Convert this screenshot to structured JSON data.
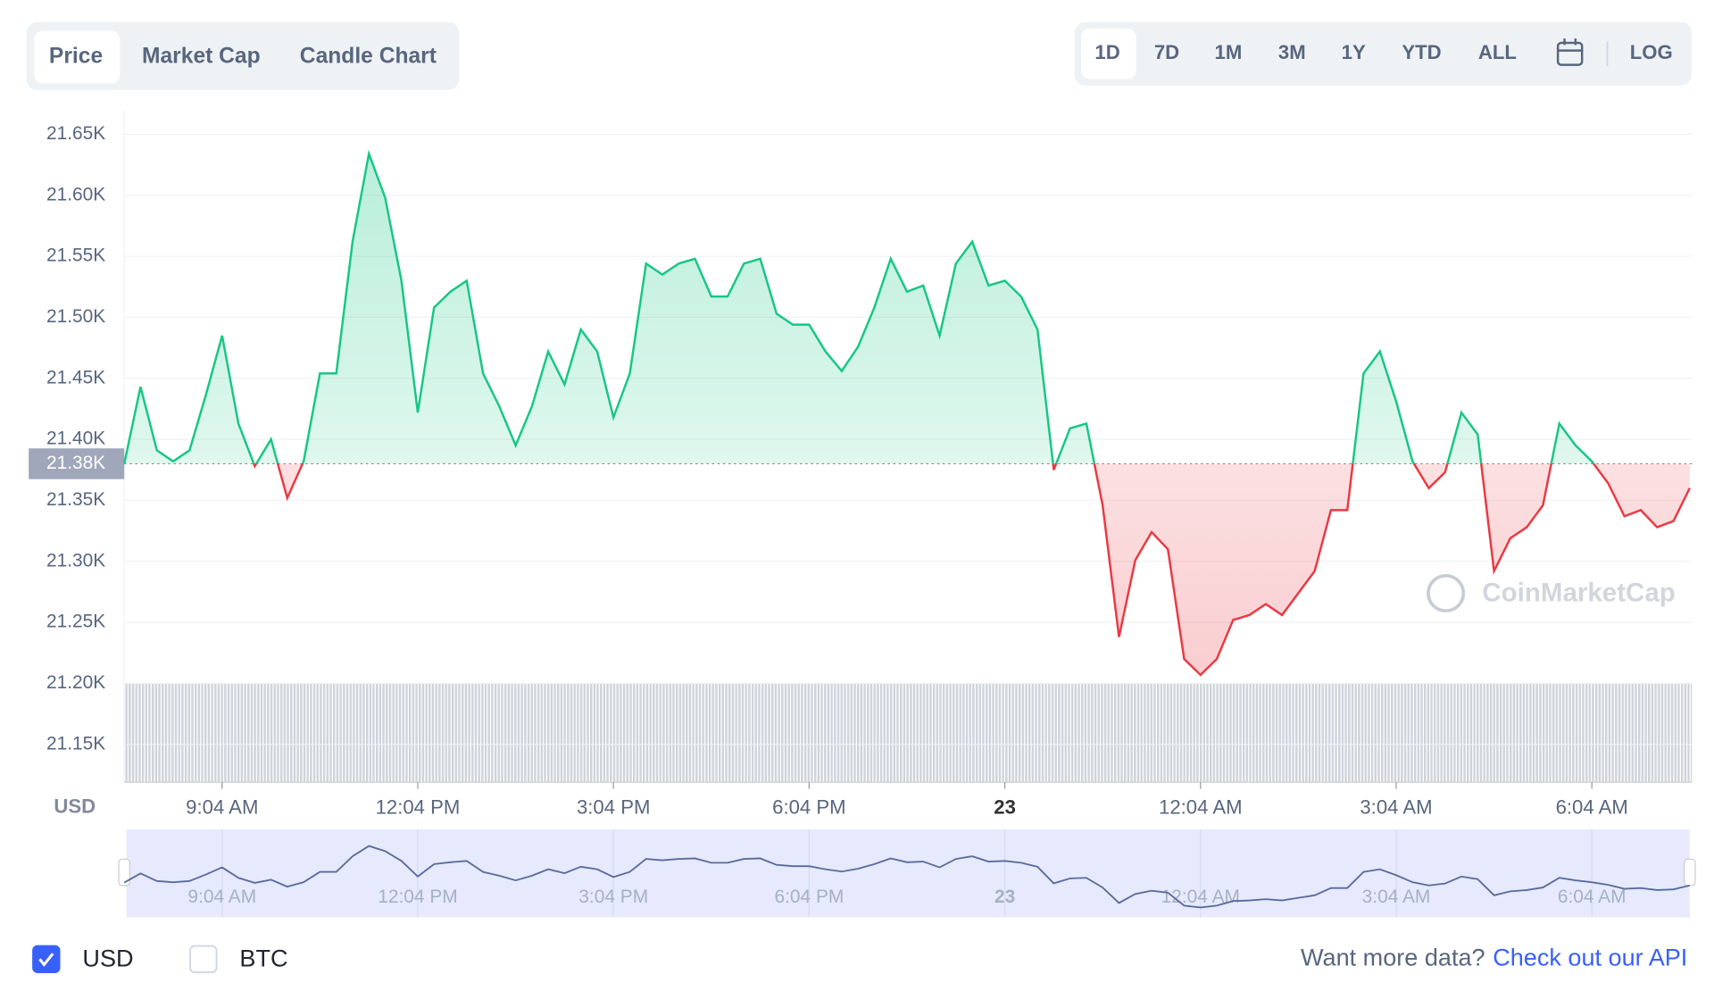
{
  "tabs": [
    "Price",
    "Market Cap",
    "Candle Chart"
  ],
  "ranges": [
    "1D",
    "7D",
    "1M",
    "3M",
    "1Y",
    "YTD",
    "ALL"
  ],
  "log_button": "LOG",
  "chart_data": {
    "type": "line",
    "y_axis_label": "USD",
    "watermark": "CoinMarketCap",
    "up_color": "#16c784",
    "down_color": "#ea3943",
    "grid": true,
    "xlim": [
      0,
      96
    ],
    "xticks": [
      {
        "value": 6,
        "label": "9:04 AM"
      },
      {
        "value": 18,
        "label": "12:04 PM"
      },
      {
        "value": 30,
        "label": "3:04 PM"
      },
      {
        "value": 42,
        "label": "6:04 PM"
      },
      {
        "value": 54,
        "label": "23"
      },
      {
        "value": 66,
        "label": "12:04 AM"
      },
      {
        "value": 78,
        "label": "3:04 AM"
      },
      {
        "value": 90,
        "label": "6:04 AM"
      }
    ],
    "ylim": [
      21119,
      21670
    ],
    "yticks": [
      {
        "value": 21150,
        "label": "21.15K"
      },
      {
        "value": 21200,
        "label": "21.20K"
      },
      {
        "value": 21250,
        "label": "21.25K"
      },
      {
        "value": 21300,
        "label": "21.30K"
      },
      {
        "value": 21350,
        "label": "21.35K"
      },
      {
        "value": 21400,
        "label": "21.40K"
      },
      {
        "value": 21450,
        "label": "21.45K"
      },
      {
        "value": 21500,
        "label": "21.50K"
      },
      {
        "value": 21550,
        "label": "21.55K"
      },
      {
        "value": 21600,
        "label": "21.60K"
      },
      {
        "value": 21650,
        "label": "21.65K"
      }
    ],
    "reference": {
      "value": 21380,
      "label": "21.38K"
    },
    "values": [
      21380,
      21443,
      21391,
      21382,
      21391,
      21436,
      21485,
      21413,
      21378,
      21400,
      21352,
      21382,
      21454,
      21454,
      21562,
      21634,
      21598,
      21530,
      21422,
      21508,
      21521,
      21530,
      21454,
      21427,
      21395,
      21427,
      21472,
      21445,
      21490,
      21472,
      21418,
      21454,
      21544,
      21535,
      21544,
      21548,
      21517,
      21517,
      21544,
      21548,
      21503,
      21494,
      21494,
      21472,
      21456,
      21476,
      21508,
      21548,
      21521,
      21526,
      21485,
      21544,
      21562,
      21526,
      21530,
      21517,
      21490,
      21375,
      21409,
      21413,
      21346,
      21238,
      21301,
      21324,
      21310,
      21220,
      21207,
      21220,
      21252,
      21256,
      21265,
      21256,
      21274,
      21292,
      21342,
      21342,
      21454,
      21472,
      21431,
      21382,
      21360,
      21373,
      21422,
      21404,
      21292,
      21319,
      21328,
      21346,
      21413,
      21395,
      21382,
      21364,
      21337,
      21342,
      21328,
      21333,
      21360
    ]
  },
  "currencies": [
    {
      "label": "USD",
      "checked": true
    },
    {
      "label": "BTC",
      "checked": false
    }
  ],
  "footer": {
    "prompt": "Want more data?",
    "link": "Check out our API"
  }
}
